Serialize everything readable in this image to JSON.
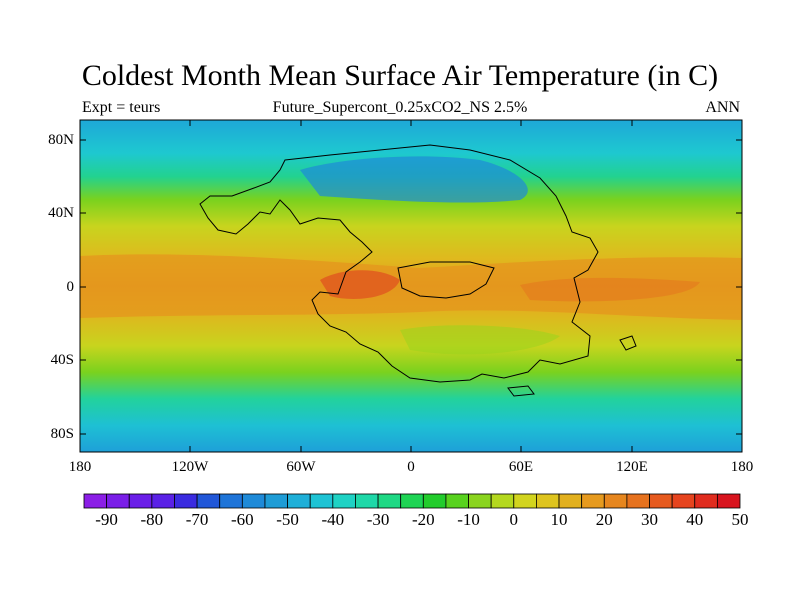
{
  "title": "Coldest Month Mean Surface Air Temperature (in C)",
  "subtitle_left": "Expt = teurs",
  "subtitle_center": "Future_Supercont_0.25xCO2_NS 2.5%",
  "subtitle_right": "ANN",
  "lat_labels": [
    "80N",
    "40N",
    "0",
    "40S",
    "80S"
  ],
  "lon_labels": [
    "180",
    "120W",
    "60W",
    "0",
    "60E",
    "120E",
    "180"
  ],
  "colorbar": {
    "labels": [
      "-90",
      "-80",
      "-70",
      "-60",
      "-50",
      "-40",
      "-30",
      "-20",
      "-10",
      "0",
      "10",
      "20",
      "30",
      "40",
      "50"
    ],
    "colors": [
      "#8b1ee6",
      "#7a1ee8",
      "#6a1ee8",
      "#5a21e6",
      "#3a2be0",
      "#2157d8",
      "#1e74d8",
      "#1e8ad8",
      "#1e9cd6",
      "#1eafd8",
      "#1ec3d4",
      "#1ed2c4",
      "#1ed8a8",
      "#1ed884",
      "#1ed454",
      "#22cc2c",
      "#58d21e",
      "#8ad41e",
      "#b4d81e",
      "#d2d41e",
      "#dec41e",
      "#e2b01e",
      "#e69a1e",
      "#e6861e",
      "#e6721e",
      "#e65a1e",
      "#e6441e",
      "#e02c1e",
      "#d8141e"
    ]
  }
}
